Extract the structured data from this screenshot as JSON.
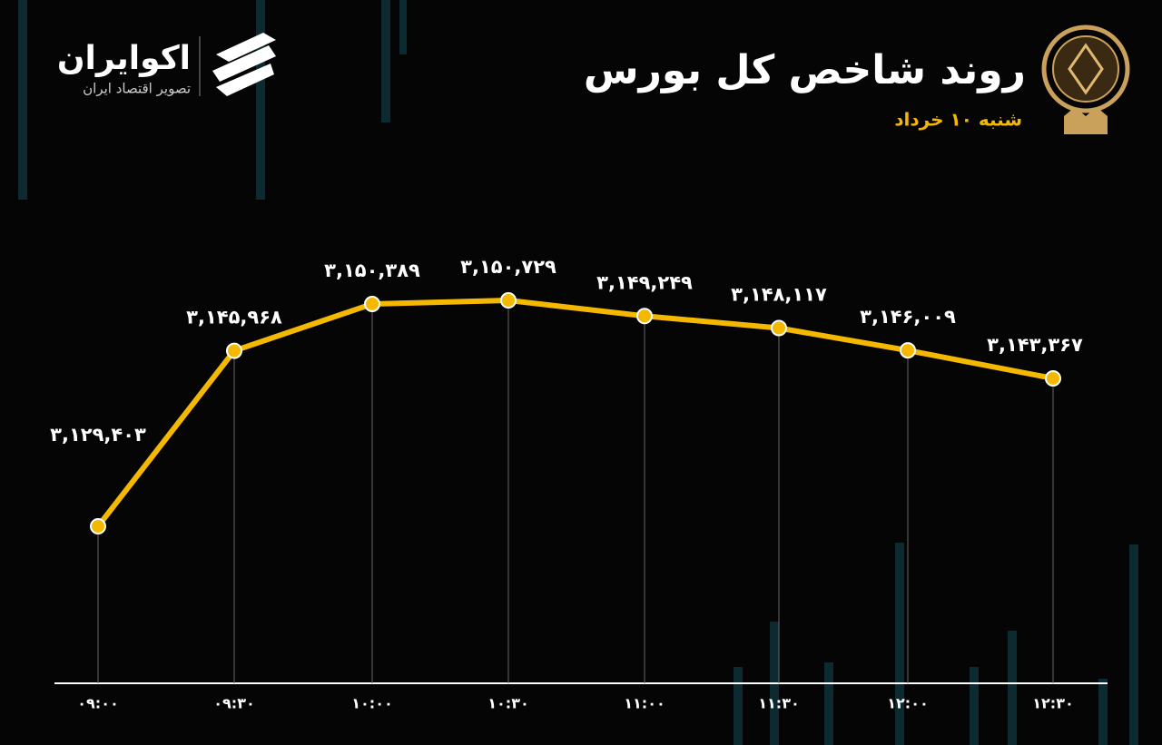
{
  "brand": {
    "name": "اکوایران",
    "tagline": "تصویر اقتصاد ایران"
  },
  "chart_data": {
    "type": "line",
    "title": "روند شاخص کل بورس",
    "subtitle": "شنبه ۱۰ خرداد",
    "categories": [
      "۰۹:۰۰",
      "۰۹:۳۰",
      "۱۰:۰۰",
      "۱۰:۳۰",
      "۱۱:۰۰",
      "۱۱:۳۰",
      "۱۲:۰۰",
      "۱۲:۳۰"
    ],
    "values": [
      3129403,
      3145968,
      3150389,
      3150729,
      3149249,
      3148117,
      3146009,
      3143367
    ],
    "value_labels": [
      "۳,۱۲۹,۴۰۳",
      "۳,۱۴۵,۹۶۸",
      "۳,۱۵۰,۳۸۹",
      "۳,۱۵۰,۷۲۹",
      "۳,۱۴۹,۲۴۹",
      "۳,۱۴۸,۱۱۷",
      "۳,۱۴۶,۰۰۹",
      "۳,۱۴۳,۳۶۷"
    ],
    "color": "#f5b800"
  }
}
